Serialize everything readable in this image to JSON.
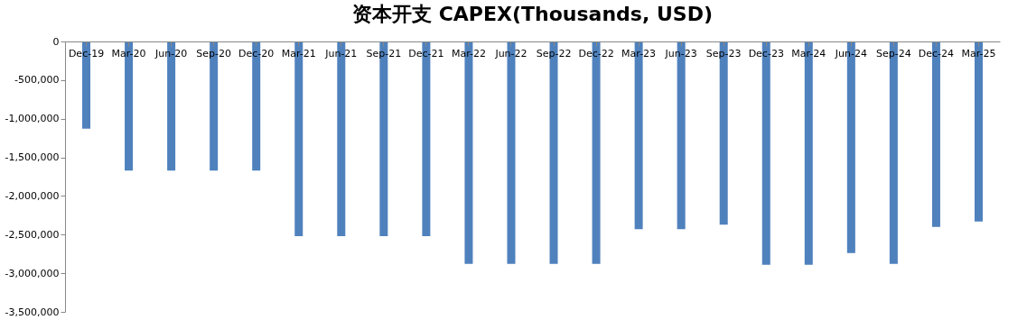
{
  "chart_data": {
    "type": "bar",
    "title": "资本开支 CAPEX(Thousands, USD)",
    "categories": [
      "Dec-19",
      "Mar-20",
      "Jun-20",
      "Sep-20",
      "Dec-20",
      "Mar-21",
      "Jun-21",
      "Sep-21",
      "Dec-21",
      "Mar-22",
      "Jun-22",
      "Sep-22",
      "Dec-22",
      "Mar-23",
      "Jun-23",
      "Sep-23",
      "Dec-23",
      "Mar-24",
      "Jun-24",
      "Sep-24",
      "Dec-24",
      "Mar-25"
    ],
    "values": [
      -1130000,
      -1670000,
      -1670000,
      -1670000,
      -1670000,
      -2520000,
      -2520000,
      -2520000,
      -2520000,
      -2880000,
      -2880000,
      -2880000,
      -2880000,
      -2430000,
      -2430000,
      -2370000,
      -2890000,
      -2890000,
      -2740000,
      -2880000,
      -2400000,
      -2330000
    ],
    "color": "#4f81bd",
    "ylim": [
      -3500000,
      0
    ],
    "yticks": [
      {
        "value": -3500000,
        "label": "-3,500,000"
      },
      {
        "value": -3000000,
        "label": "-3,000,000"
      },
      {
        "value": -2500000,
        "label": "-2,500,000"
      },
      {
        "value": -2000000,
        "label": "-2,000,000"
      },
      {
        "value": -1500000,
        "label": "-1,500,000"
      },
      {
        "value": -1000000,
        "label": "-1,000,000"
      },
      {
        "value": -500000,
        "label": "-500,000"
      },
      0
    ],
    "grid": false
  }
}
